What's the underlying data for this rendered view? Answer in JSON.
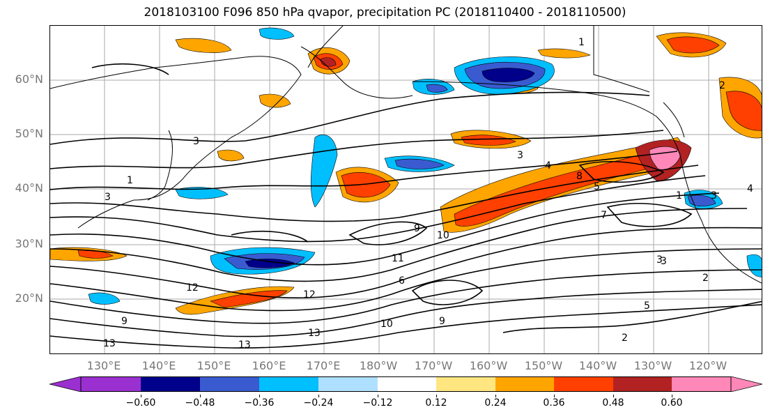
{
  "title": "2018103100 F096 850 hPa qvapor, precipitation PC (2018110400 - 2018110500)",
  "map": {
    "lat_labels": [
      "60°N",
      "50°N",
      "40°N",
      "30°N",
      "20°N"
    ],
    "lon_labels": [
      "130°E",
      "140°E",
      "150°E",
      "160°E",
      "170°E",
      "180°W",
      "170°W",
      "160°W",
      "150°W",
      "140°W",
      "130°W",
      "120°W"
    ],
    "contour_labels": [
      "1",
      "2",
      "3",
      "3",
      "4",
      "5",
      "8",
      "9",
      "10",
      "11",
      "12",
      "13",
      "1",
      "3",
      "4",
      "2",
      "3",
      "5",
      "9",
      "10",
      "12",
      "13",
      "9",
      "13",
      "2",
      "6",
      "3",
      "1",
      "3",
      "7"
    ]
  },
  "colorbar": {
    "colors": [
      "#9b30d0",
      "#00008b",
      "#3a5bd0",
      "#00bfff",
      "#b0e0ff",
      "#ffffff",
      "#ffe680",
      "#ffa500",
      "#ff4000",
      "#b22222",
      "#ff88b8"
    ],
    "tick_labels": [
      "−0.60",
      "−0.48",
      "−0.36",
      "−0.24",
      "−0.12",
      "0.12",
      "0.24",
      "0.36",
      "0.48",
      "0.60"
    ]
  },
  "icons": {
    "map": "filled-contour-map",
    "coast": "coastline"
  }
}
